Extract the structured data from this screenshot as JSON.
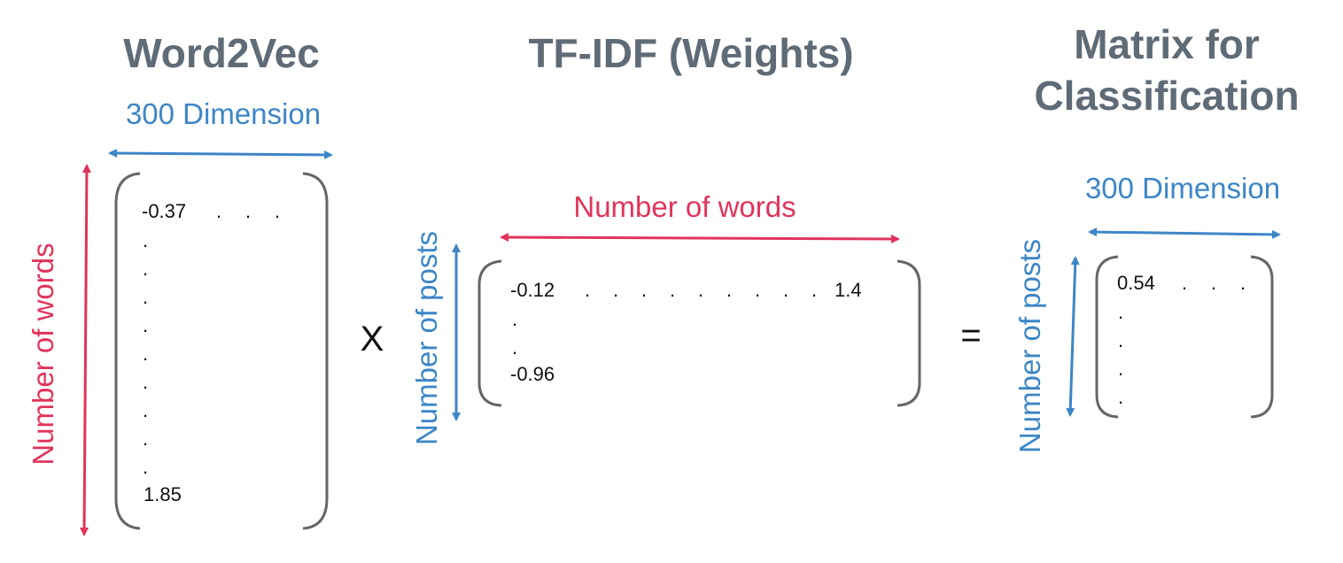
{
  "titles": {
    "word2vec": "Word2Vec",
    "tfidf": "TF-IDF (Weights)",
    "result_line1": "Matrix for",
    "result_line2": "Classification"
  },
  "labels": {
    "w2v_dimension": "300 Dimension",
    "w2v_rows": "Number of words",
    "tfidf_cols": "Number of words",
    "tfidf_rows": "Number of posts",
    "result_dimension": "300 Dimension",
    "result_rows": "Number of posts"
  },
  "operators": {
    "multiply": "X",
    "equals": "="
  },
  "matrices": {
    "word2vec": {
      "first": "-0.37",
      "last": "1.85"
    },
    "tfidf": {
      "first": "-0.12",
      "row1_last": "1.4",
      "last_row_first": "-0.96"
    },
    "result": {
      "first": "0.54"
    }
  },
  "colors": {
    "title": "#5f6b76",
    "blue": "#3d86c6",
    "red": "#e0345c",
    "bracket": "#666666"
  }
}
